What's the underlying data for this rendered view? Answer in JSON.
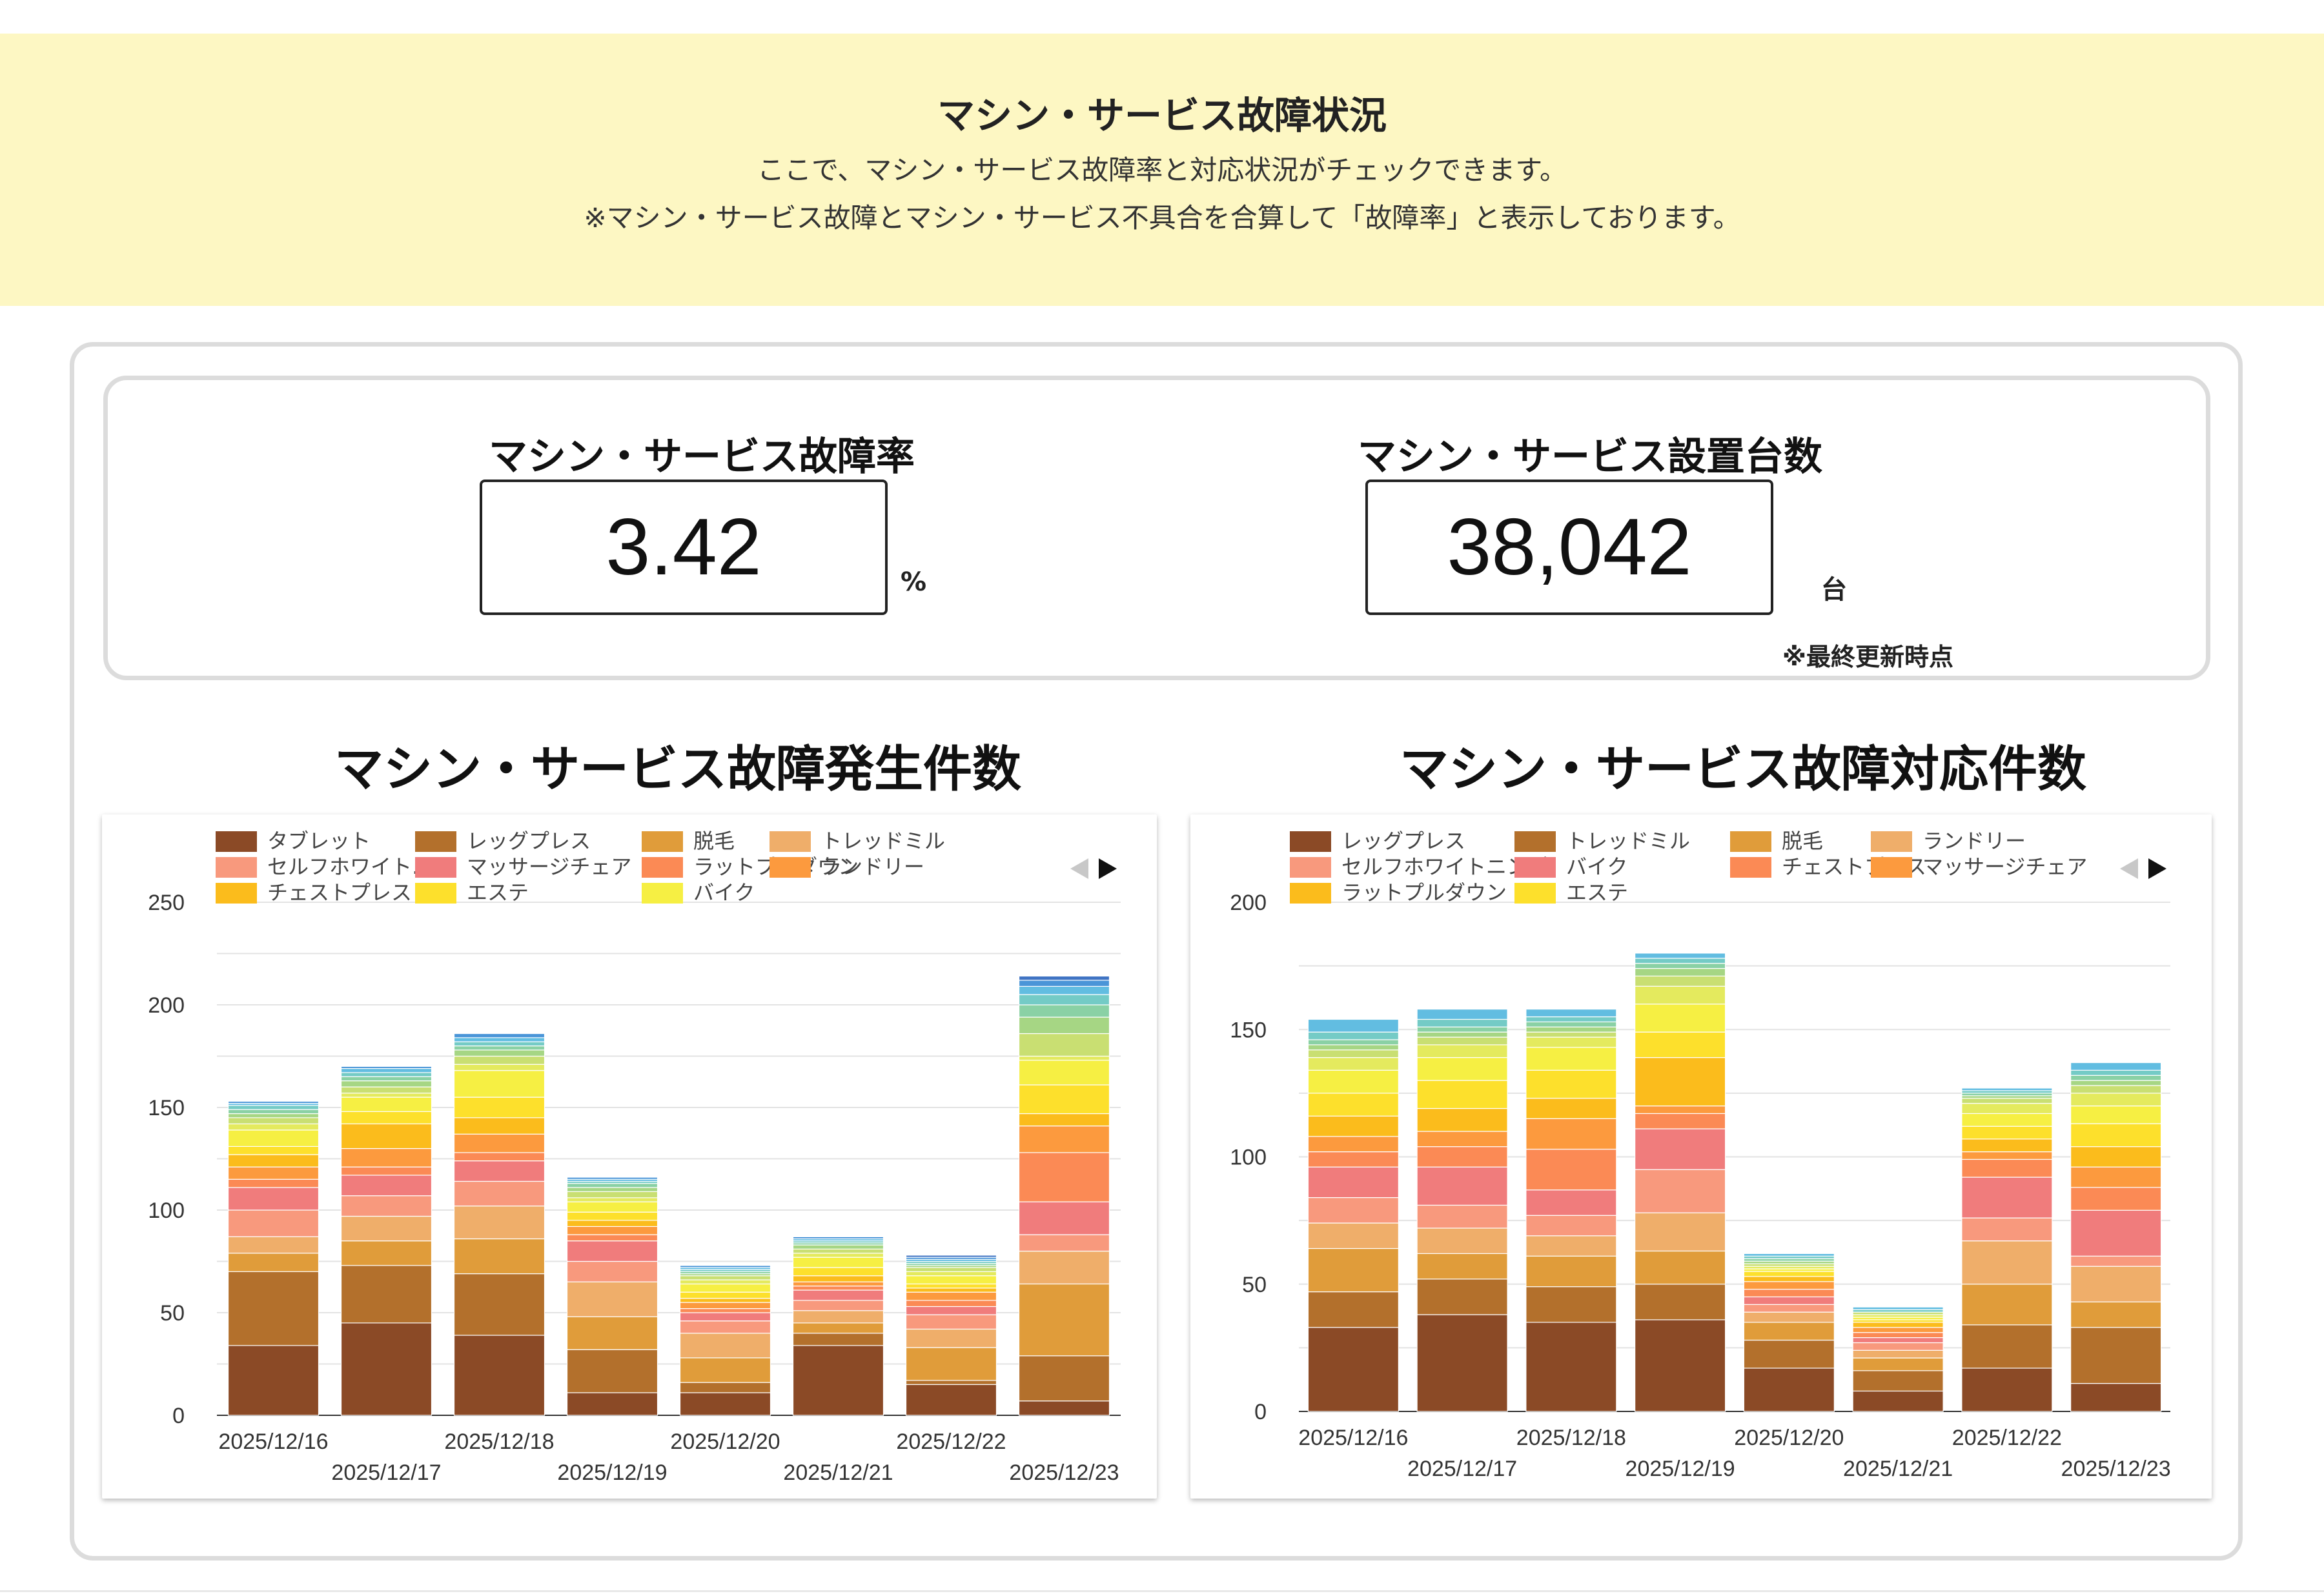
{
  "banner": {
    "title": "マシン・サービス故障状況",
    "line1": "ここで、マシン・サービス故障率と対応状況がチェックできます。",
    "line2": "※マシン・サービス故障とマシン・サービス不具合を合算して「故障率」と表示しております。"
  },
  "kpis": {
    "rate": {
      "label": "マシン・サービス故障率",
      "value": "3.42",
      "unit": "%"
    },
    "count": {
      "label": "マシン・サービス設置台数",
      "value": "38,042",
      "unit": "台",
      "note": "※最終更新時点"
    }
  },
  "colors": {
    "palette": [
      "#8b4a26",
      "#b3702c",
      "#e09c3a",
      "#efae6a",
      "#f8997d",
      "#f07c7c",
      "#fb8a55",
      "#fc9a3e",
      "#fbbc1c",
      "#fde02c",
      "#f6ef43",
      "#e4ea5e",
      "#c9df72",
      "#a6d684",
      "#8ad1a5",
      "#74cbc6",
      "#62bde1",
      "#4a95d8",
      "#3f73c3"
    ]
  },
  "chart_data": [
    {
      "type": "bar",
      "stacked": true,
      "title": "マシン・サービス故障発生件数",
      "categories": [
        "2025/12/16",
        "2025/12/17",
        "2025/12/18",
        "2025/12/19",
        "2025/12/20",
        "2025/12/21",
        "2025/12/22",
        "2025/12/23"
      ],
      "ylim": [
        0,
        250
      ],
      "yticks": [
        0,
        50,
        100,
        150,
        200,
        250
      ],
      "legend": [
        "タブレット",
        "レッグプレス",
        "脱毛",
        "トレッドミル",
        "セルフホワイト…",
        "マッサージチェア",
        "ラットプルダウン",
        "ランドリー",
        "チェストプレス",
        "エステ",
        "バイク"
      ],
      "series": [
        {
          "name": "タブレット",
          "values": [
            34,
            45,
            39,
            11,
            11,
            34,
            15,
            7
          ]
        },
        {
          "name": "レッグプレス",
          "values": [
            36,
            28,
            30,
            21,
            5,
            6,
            2,
            22
          ]
        },
        {
          "name": "脱毛",
          "values": [
            9,
            12,
            17,
            16,
            12,
            5,
            16,
            35
          ]
        },
        {
          "name": "トレッドミル",
          "values": [
            8,
            12,
            16,
            17,
            12,
            6,
            9,
            16
          ]
        },
        {
          "name": "セルフホワイト…",
          "values": [
            13,
            10,
            12,
            10,
            6,
            5,
            7,
            8
          ]
        },
        {
          "name": "マッサージチェア",
          "values": [
            11,
            10,
            10,
            10,
            4,
            5,
            4,
            16
          ]
        },
        {
          "name": "ラットプルダウン",
          "values": [
            4,
            4,
            4,
            3,
            2,
            2,
            3,
            24
          ]
        },
        {
          "name": "ランドリー",
          "values": [
            6,
            9,
            9,
            4,
            3,
            2,
            4,
            13
          ]
        },
        {
          "name": "チェストプレス",
          "values": [
            6,
            12,
            8,
            3,
            2,
            3,
            2,
            6
          ]
        },
        {
          "name": "エステ",
          "values": [
            4,
            6,
            10,
            4,
            3,
            4,
            2,
            14
          ]
        },
        {
          "name": "バイク",
          "values": [
            8,
            7,
            13,
            5,
            4,
            5,
            4,
            12
          ]
        }
      ],
      "minor_stack_segments": [
        [
          3,
          2,
          3,
          2,
          2,
          2,
          2,
          2
        ],
        [
          3,
          3,
          4,
          3,
          2,
          2,
          2,
          11
        ],
        [
          2,
          3,
          3,
          2,
          1,
          2,
          1,
          8
        ],
        [
          2,
          2,
          2,
          2,
          1,
          1,
          1,
          6
        ],
        [
          2,
          2,
          2,
          1,
          1,
          1,
          1,
          5
        ],
        [
          1,
          2,
          2,
          1,
          1,
          1,
          1,
          4
        ],
        [
          1,
          1,
          2,
          1,
          1,
          1,
          1,
          3
        ],
        [
          0,
          0,
          0,
          0,
          0,
          0,
          1,
          2
        ]
      ]
    },
    {
      "type": "bar",
      "stacked": true,
      "title": "マシン・サービス故障対応件数",
      "categories": [
        "2025/12/16",
        "2025/12/17",
        "2025/12/18",
        "2025/12/19",
        "2025/12/20",
        "2025/12/21",
        "2025/12/22",
        "2025/12/23"
      ],
      "ylim": [
        0,
        200
      ],
      "yticks": [
        0,
        50,
        100,
        150,
        200
      ],
      "legend": [
        "レッグプレス",
        "トレッドミル",
        "脱毛",
        "ランドリー",
        "セルフホワイトニング",
        "バイク",
        "チェストプレス",
        "マッサージチェア",
        "ラットプルダウン",
        "エステ"
      ],
      "series": [
        {
          "name": "レッグプレス",
          "values": [
            33,
            38,
            35,
            36,
            17,
            8,
            17,
            11
          ]
        },
        {
          "name": "トレッドミル",
          "values": [
            14,
            14,
            14,
            14,
            11,
            8,
            17,
            22
          ]
        },
        {
          "name": "脱毛",
          "values": [
            17,
            10,
            12,
            13,
            7,
            5,
            16,
            10
          ]
        },
        {
          "name": "ランドリー",
          "values": [
            10,
            10,
            8,
            15,
            4,
            3,
            17,
            14
          ]
        },
        {
          "name": "セルフホワイトニング",
          "values": [
            10,
            9,
            8,
            17,
            3,
            3,
            9,
            4
          ]
        },
        {
          "name": "バイク",
          "values": [
            12,
            15,
            10,
            16,
            3,
            2,
            16,
            18
          ]
        },
        {
          "name": "チェストプレス",
          "values": [
            6,
            8,
            16,
            6,
            3,
            2,
            7,
            9
          ]
        },
        {
          "name": "マッサージチェア",
          "values": [
            6,
            6,
            12,
            3,
            3,
            2,
            3,
            8
          ]
        },
        {
          "name": "ラットプルダウン",
          "values": [
            8,
            9,
            8,
            19,
            2,
            2,
            5,
            8
          ]
        },
        {
          "name": "エステ",
          "values": [
            9,
            11,
            11,
            10,
            2,
            1,
            5,
            9
          ]
        }
      ],
      "minor_stack_segments": [
        [
          9,
          9,
          9,
          11,
          1,
          1,
          5,
          7
        ],
        [
          5,
          5,
          4,
          7,
          1,
          1,
          4,
          5
        ],
        [
          3,
          3,
          2,
          4,
          1,
          1,
          2,
          3
        ],
        [
          2,
          2,
          2,
          3,
          1,
          0,
          1,
          2
        ],
        [
          2,
          2,
          2,
          2,
          1,
          0,
          1,
          2
        ],
        [
          3,
          3,
          2,
          2,
          1,
          1,
          1,
          2
        ],
        [
          5,
          4,
          3,
          2,
          1,
          1,
          1,
          3
        ]
      ]
    }
  ]
}
